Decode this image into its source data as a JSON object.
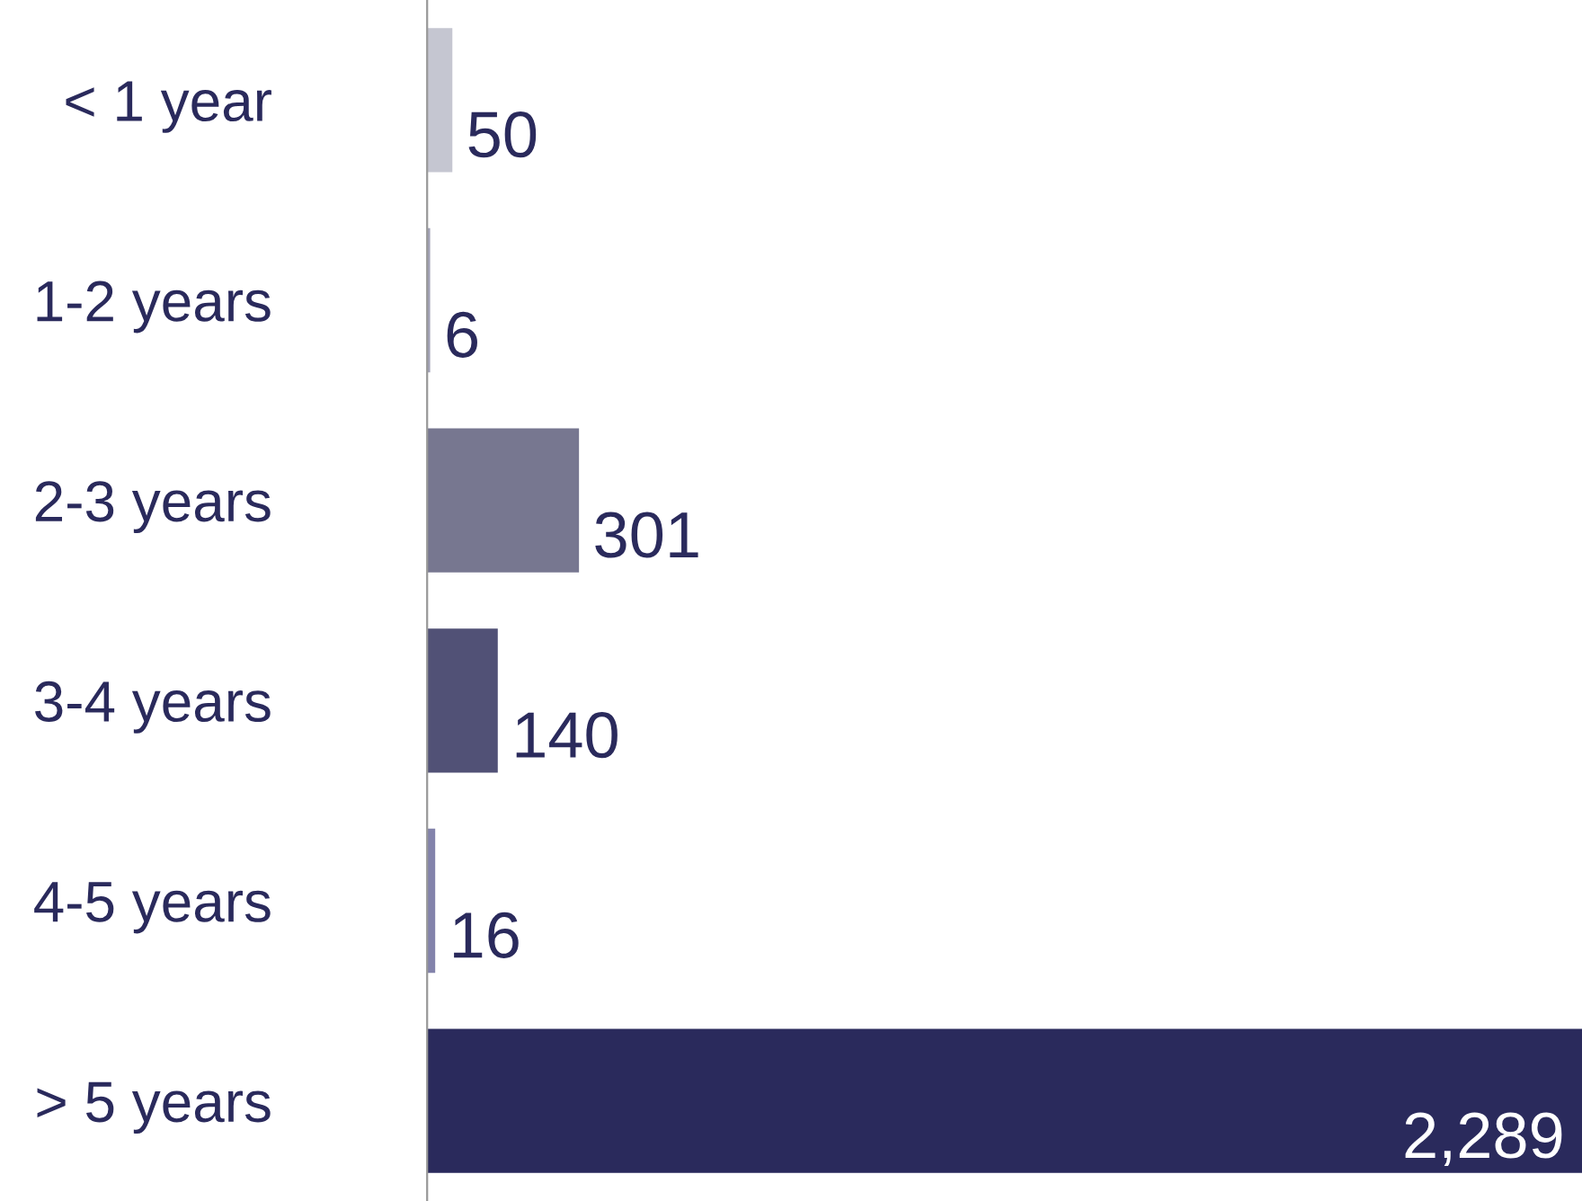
{
  "chart_data": {
    "type": "bar",
    "orientation": "horizontal",
    "categories": [
      "< 1 year",
      "1-2 years",
      "2-3 years",
      "3-4 years",
      "4-5 years",
      "> 5 years"
    ],
    "values": [
      50,
      6,
      301,
      140,
      16,
      2289
    ],
    "colors": [
      "#c5c6d1",
      "#a3a3b8",
      "#777790",
      "#515176",
      "#8383ab",
      "#2a2a5c"
    ],
    "value_labels": [
      "50",
      "6",
      "301",
      "140",
      "16",
      "2,289"
    ],
    "grid": false,
    "legend": false
  }
}
